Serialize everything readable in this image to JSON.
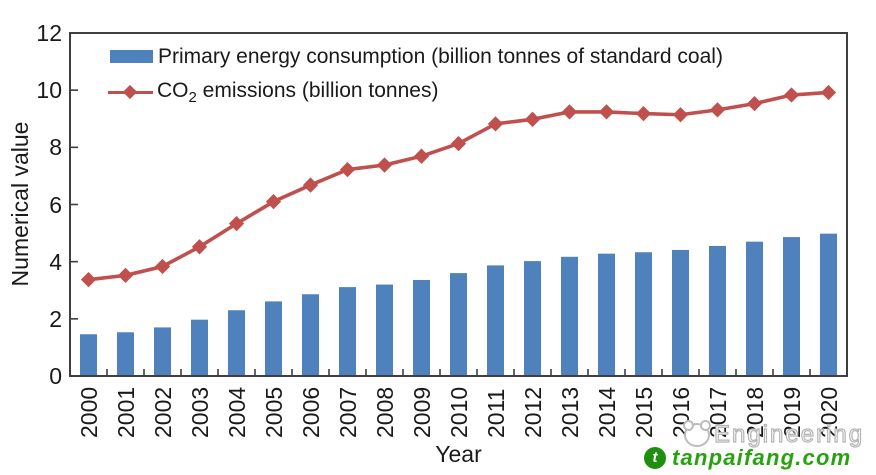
{
  "figure": {
    "background": "#ffffff"
  },
  "axes": {
    "y_label": "Numerical value",
    "x_label": "Year"
  },
  "legend": {
    "energy_label": "Primary energy consumption (billion tonnes of standard coal)",
    "co2_prefix": "CO",
    "co2_sub": "2",
    "co2_suffix": " emissions (billion tonnes)"
  },
  "watermark": {
    "engineering": "Engineering",
    "site": "tanpaifang.com",
    "site_icon_letter": "t"
  },
  "chart_data": {
    "type": "combo",
    "categories": [
      "2000",
      "2001",
      "2002",
      "2003",
      "2004",
      "2005",
      "2006",
      "2007",
      "2008",
      "2009",
      "2010",
      "2011",
      "2012",
      "2013",
      "2014",
      "2015",
      "2016",
      "2017",
      "2018",
      "2019",
      "2020"
    ],
    "series": [
      {
        "name": "Primary energy consumption (billion tonnes of standard coal)",
        "type": "bar",
        "color": "#4f81bd",
        "values": [
          1.46,
          1.53,
          1.7,
          1.97,
          2.3,
          2.61,
          2.86,
          3.11,
          3.2,
          3.36,
          3.6,
          3.87,
          4.02,
          4.17,
          4.28,
          4.33,
          4.41,
          4.55,
          4.7,
          4.86,
          4.98
        ]
      },
      {
        "name": "CO2 emissions (billion tonnes)",
        "type": "line",
        "marker": "diamond",
        "color": "#c0504d",
        "values": [
          3.37,
          3.52,
          3.83,
          4.52,
          5.33,
          6.1,
          6.68,
          7.22,
          7.38,
          7.69,
          8.13,
          8.82,
          8.98,
          9.24,
          9.24,
          9.18,
          9.14,
          9.31,
          9.53,
          9.83,
          9.92
        ]
      }
    ],
    "title": "",
    "xlabel": "Year",
    "ylabel": "Numerical value",
    "ylim": [
      0,
      12
    ],
    "y_ticks": [
      0,
      2,
      4,
      6,
      8,
      10,
      12
    ],
    "x_tick_rotation": 90,
    "grid": false,
    "legend_position": "top-left-inside",
    "frame_color": "#3f3f3f"
  }
}
